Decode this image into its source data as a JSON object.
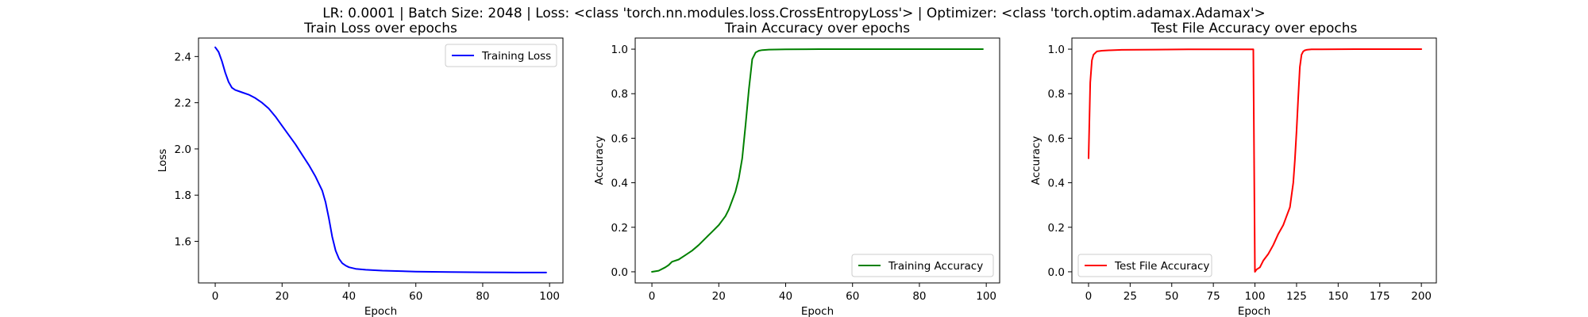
{
  "suptitle": "LR: 0.0001 | Batch Size: 2048 | Loss: <class 'torch.nn.modules.loss.CrossEntropyLoss'> | Optimizer: <class 'torch.optim.adamax.Adamax'>",
  "chart_data": [
    {
      "type": "line",
      "title": "Train Loss over epochs",
      "xlabel": "Epoch",
      "ylabel": "Loss",
      "xlim": [
        -5,
        104
      ],
      "ylim": [
        1.42,
        2.48
      ],
      "xticks": [
        0,
        20,
        40,
        60,
        80,
        100
      ],
      "yticks": [
        1.6,
        1.8,
        2.0,
        2.2,
        2.4
      ],
      "ytick_labels": [
        "1.6",
        "1.8",
        "2.0",
        "2.2",
        "2.4"
      ],
      "legend": "upper right",
      "series": [
        {
          "name": "Training Loss",
          "color": "#0000ff",
          "x": [
            0,
            1,
            2,
            3,
            4,
            5,
            6,
            7,
            8,
            10,
            12,
            14,
            16,
            18,
            20,
            22,
            24,
            26,
            28,
            30,
            32,
            33,
            34,
            35,
            36,
            37,
            38,
            39,
            40,
            42,
            45,
            50,
            60,
            70,
            80,
            90,
            99
          ],
          "y": [
            2.44,
            2.42,
            2.38,
            2.33,
            2.29,
            2.265,
            2.255,
            2.25,
            2.245,
            2.235,
            2.22,
            2.2,
            2.175,
            2.14,
            2.1,
            2.06,
            2.02,
            1.975,
            1.93,
            1.88,
            1.82,
            1.77,
            1.7,
            1.62,
            1.56,
            1.525,
            1.505,
            1.495,
            1.488,
            1.481,
            1.477,
            1.473,
            1.469,
            1.467,
            1.466,
            1.465,
            1.465
          ]
        }
      ]
    },
    {
      "type": "line",
      "title": "Train Accuracy over epochs",
      "xlabel": "Epoch",
      "ylabel": "Accuracy",
      "xlim": [
        -5,
        104
      ],
      "ylim": [
        -0.05,
        1.05
      ],
      "xticks": [
        0,
        20,
        40,
        60,
        80,
        100
      ],
      "yticks": [
        0.0,
        0.2,
        0.4,
        0.6,
        0.8,
        1.0
      ],
      "ytick_labels": [
        "0.0",
        "0.2",
        "0.4",
        "0.6",
        "0.8",
        "1.0"
      ],
      "legend": "lower right",
      "series": [
        {
          "name": "Training Accuracy",
          "color": "#008000",
          "x": [
            0,
            2,
            4,
            5,
            6,
            8,
            10,
            12,
            14,
            16,
            18,
            20,
            22,
            23,
            24,
            25,
            26,
            27,
            28,
            29,
            30,
            31,
            32,
            33,
            35,
            40,
            50,
            60,
            80,
            99
          ],
          "y": [
            0.0,
            0.005,
            0.02,
            0.03,
            0.045,
            0.055,
            0.075,
            0.095,
            0.12,
            0.15,
            0.18,
            0.21,
            0.25,
            0.28,
            0.32,
            0.36,
            0.42,
            0.51,
            0.66,
            0.82,
            0.955,
            0.985,
            0.993,
            0.996,
            0.998,
            0.999,
            1.0,
            1.0,
            1.0,
            1.0
          ]
        }
      ]
    },
    {
      "type": "line",
      "title": "Test File Accuracy over epochs",
      "xlabel": "Epoch",
      "ylabel": "Accuracy",
      "xlim": [
        -10,
        209
      ],
      "ylim": [
        -0.05,
        1.05
      ],
      "xticks": [
        0,
        25,
        50,
        75,
        100,
        125,
        150,
        175,
        200
      ],
      "yticks": [
        0.0,
        0.2,
        0.4,
        0.6,
        0.8,
        1.0
      ],
      "ytick_labels": [
        "0.0",
        "0.2",
        "0.4",
        "0.6",
        "0.8",
        "1.0"
      ],
      "legend": "lower left",
      "series": [
        {
          "name": "Test File Accuracy",
          "color": "#ff0000",
          "x": [
            0,
            1,
            2,
            3,
            5,
            8,
            12,
            20,
            40,
            60,
            80,
            99,
            100,
            101,
            103,
            105,
            108,
            111,
            114,
            117,
            119,
            121,
            123,
            124,
            125,
            126,
            127,
            128,
            129,
            130,
            131,
            132,
            134,
            140,
            160,
            180,
            200
          ],
          "y": [
            0.51,
            0.85,
            0.95,
            0.975,
            0.99,
            0.993,
            0.995,
            0.997,
            0.998,
            0.999,
            0.999,
            0.999,
            0.0,
            0.01,
            0.02,
            0.05,
            0.08,
            0.12,
            0.17,
            0.21,
            0.25,
            0.29,
            0.4,
            0.5,
            0.63,
            0.78,
            0.92,
            0.975,
            0.99,
            0.995,
            0.997,
            0.998,
            0.999,
            0.999,
            1.0,
            1.0,
            1.0
          ]
        }
      ]
    }
  ]
}
